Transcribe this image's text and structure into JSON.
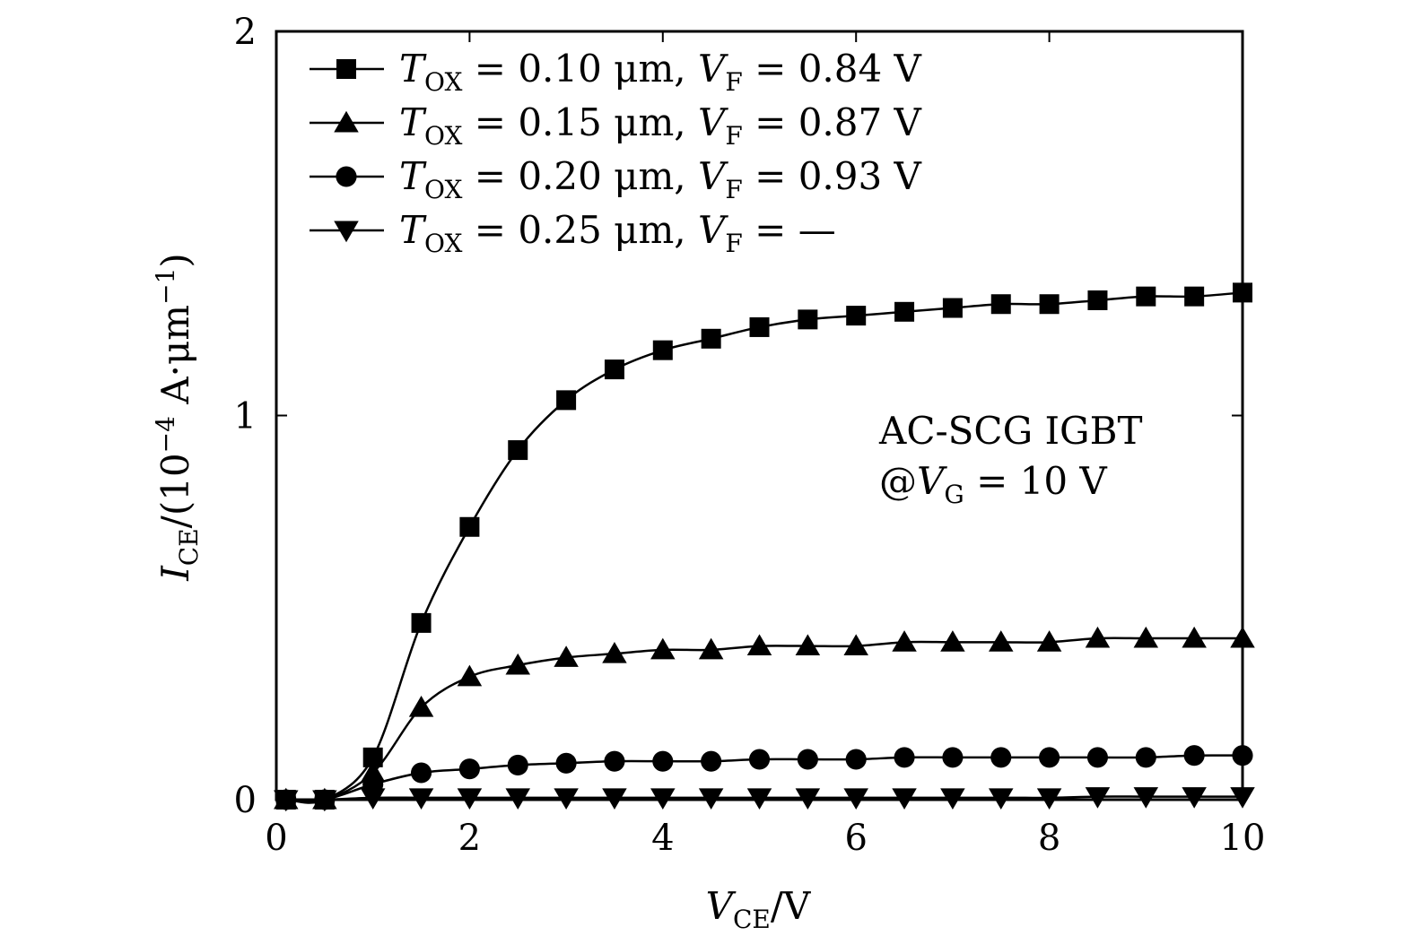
{
  "chart_data": {
    "type": "line",
    "x_label": {
      "var": "V",
      "sub": "CE",
      "unit": "/V"
    },
    "y_label": {
      "var": "I",
      "sub": "CE",
      "unit_prefix": "/(10",
      "exp": "−4",
      "unit_mid": " A·μm",
      "exp2": "−1",
      "unit_suffix": ")"
    },
    "xlim": [
      0,
      10
    ],
    "ylim": [
      0,
      2
    ],
    "x_ticks": [
      0,
      2,
      4,
      6,
      8,
      10
    ],
    "y_ticks": [
      0,
      1,
      2
    ],
    "x_tick_labels": [
      "0",
      "2",
      "4",
      "6",
      "8",
      "10"
    ],
    "y_tick_labels": [
      "0",
      "1",
      "2"
    ],
    "annotation": {
      "line1": "AC-SCG IGBT",
      "line2_prefix": "@",
      "line2_var": "V",
      "line2_sub": "G",
      "line2_suffix": " = 10 V"
    },
    "series": [
      {
        "name": "T_OX = 0.10 μm, V_F = 0.84 V",
        "tox": "0.10 μm",
        "vf": "0.84 V",
        "marker": "square",
        "x": [
          0.1,
          0.5,
          1.0,
          1.5,
          2.0,
          2.5,
          3.0,
          3.5,
          4.0,
          4.5,
          5.0,
          5.5,
          6.0,
          6.5,
          7.0,
          7.5,
          8.0,
          8.5,
          9.0,
          9.5,
          10.0
        ],
        "y": [
          0.0,
          0.0,
          0.11,
          0.46,
          0.71,
          0.91,
          1.04,
          1.12,
          1.17,
          1.2,
          1.23,
          1.25,
          1.26,
          1.27,
          1.28,
          1.29,
          1.29,
          1.3,
          1.31,
          1.31,
          1.32
        ]
      },
      {
        "name": "T_OX = 0.15 μm, V_F = 0.87 V",
        "tox": "0.15 μm",
        "vf": "0.87 V",
        "marker": "triangle-up",
        "x": [
          0.1,
          0.5,
          1.0,
          1.5,
          2.0,
          2.5,
          3.0,
          3.5,
          4.0,
          4.5,
          5.0,
          5.5,
          6.0,
          6.5,
          7.0,
          7.5,
          8.0,
          8.5,
          9.0,
          9.5,
          10.0
        ],
        "y": [
          0.0,
          0.0,
          0.07,
          0.24,
          0.32,
          0.35,
          0.37,
          0.38,
          0.39,
          0.39,
          0.4,
          0.4,
          0.4,
          0.41,
          0.41,
          0.41,
          0.41,
          0.42,
          0.42,
          0.42,
          0.42
        ]
      },
      {
        "name": "T_OX = 0.20 μm, V_F = 0.93 V",
        "tox": "0.20 μm",
        "vf": "0.93 V",
        "marker": "circle",
        "x": [
          0.1,
          0.5,
          1.0,
          1.5,
          2.0,
          2.5,
          3.0,
          3.5,
          4.0,
          4.5,
          5.0,
          5.5,
          6.0,
          6.5,
          7.0,
          7.5,
          8.0,
          8.5,
          9.0,
          9.5,
          10.0
        ],
        "y": [
          0.0,
          0.0,
          0.04,
          0.07,
          0.08,
          0.09,
          0.095,
          0.1,
          0.1,
          0.1,
          0.105,
          0.105,
          0.105,
          0.11,
          0.11,
          0.11,
          0.11,
          0.11,
          0.11,
          0.115,
          0.115
        ]
      },
      {
        "name": "T_OX = 0.25 μm, V_F = —",
        "tox": "0.25 μm",
        "vf": "—",
        "marker": "triangle-down",
        "x": [
          0.1,
          0.5,
          1.0,
          1.5,
          2.0,
          2.5,
          3.0,
          3.5,
          4.0,
          4.5,
          5.0,
          5.5,
          6.0,
          6.5,
          7.0,
          7.5,
          8.0,
          8.5,
          9.0,
          9.5,
          10.0
        ],
        "y": [
          0.0,
          0.0,
          0.005,
          0.005,
          0.005,
          0.005,
          0.005,
          0.005,
          0.005,
          0.005,
          0.005,
          0.005,
          0.005,
          0.005,
          0.005,
          0.005,
          0.005,
          0.008,
          0.008,
          0.008,
          0.008
        ]
      }
    ],
    "legend": {
      "t_var": "T",
      "t_sub": "OX",
      "v_var": "V",
      "v_sub": "F",
      "eq": " = "
    }
  }
}
